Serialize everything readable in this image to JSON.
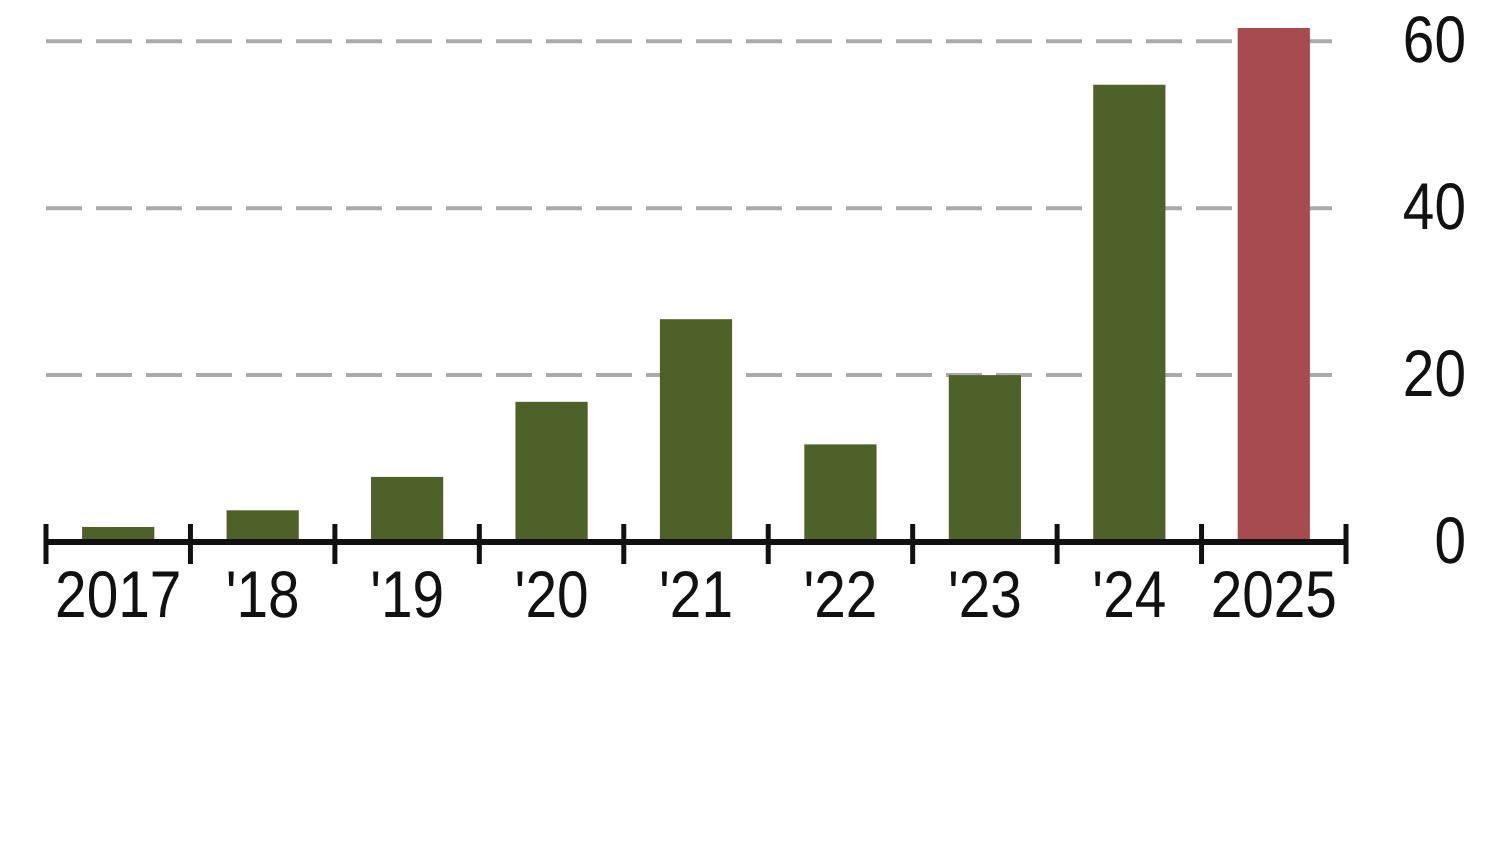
{
  "chart_data": {
    "type": "bar",
    "categories": [
      "2017",
      "'18",
      "'19",
      "'20",
      "'21",
      "'22",
      "'23",
      "'24",
      "2025"
    ],
    "values": [
      1.8,
      3.8,
      7.8,
      16.8,
      26.7,
      11.7,
      20.0,
      54.8,
      61.6
    ],
    "colors": [
      "#4d6129",
      "#4d6129",
      "#4d6129",
      "#4d6129",
      "#4d6129",
      "#4d6129",
      "#4d6129",
      "#4d6129",
      "#a84b4e"
    ],
    "ylim": [
      0,
      61.6
    ],
    "yticks": [
      0,
      20,
      40,
      60
    ],
    "grid": "y"
  }
}
